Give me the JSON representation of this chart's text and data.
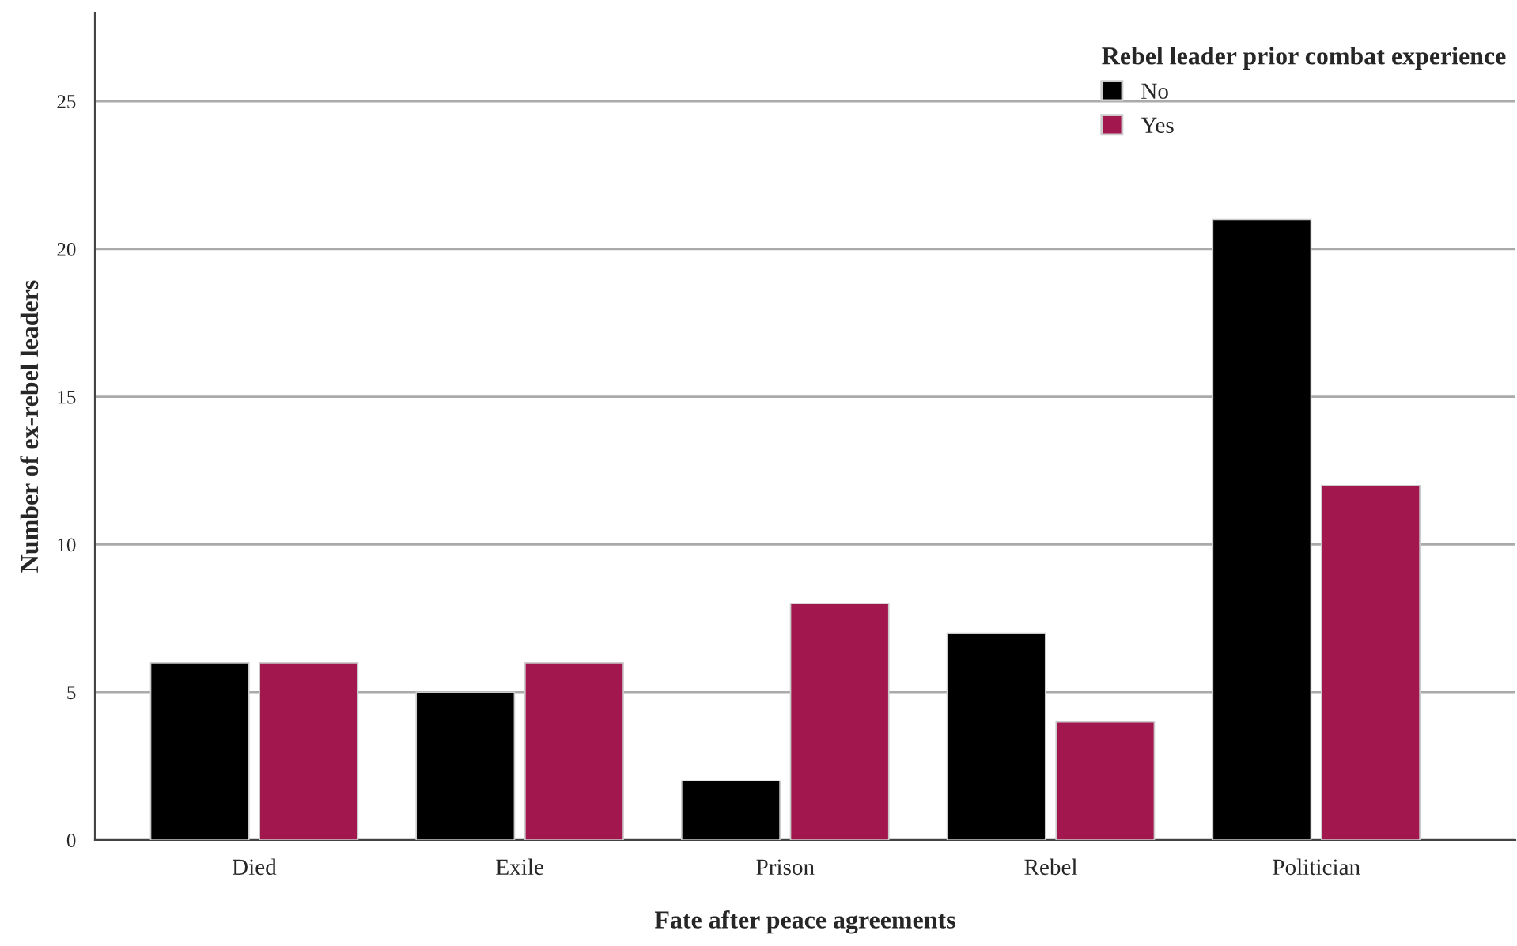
{
  "chart_data": {
    "type": "bar",
    "xlabel": "Fate after peace agreements",
    "ylabel": "Number of ex-rebel leaders",
    "legend_title": "Rebel leader prior combat experience",
    "categories": [
      "Died",
      "Exile",
      "Prison",
      "Rebel",
      "Politician"
    ],
    "series": [
      {
        "name": "No",
        "color": "#000000",
        "values": [
          6,
          5,
          2,
          7,
          21
        ]
      },
      {
        "name": "Yes",
        "color": "#a3174f",
        "values": [
          6,
          6,
          8,
          4,
          12
        ]
      }
    ],
    "ylim": [
      0,
      28
    ],
    "yticks": [
      0,
      5,
      10,
      15,
      20,
      25
    ],
    "grid": "y",
    "legend": "top right"
  }
}
